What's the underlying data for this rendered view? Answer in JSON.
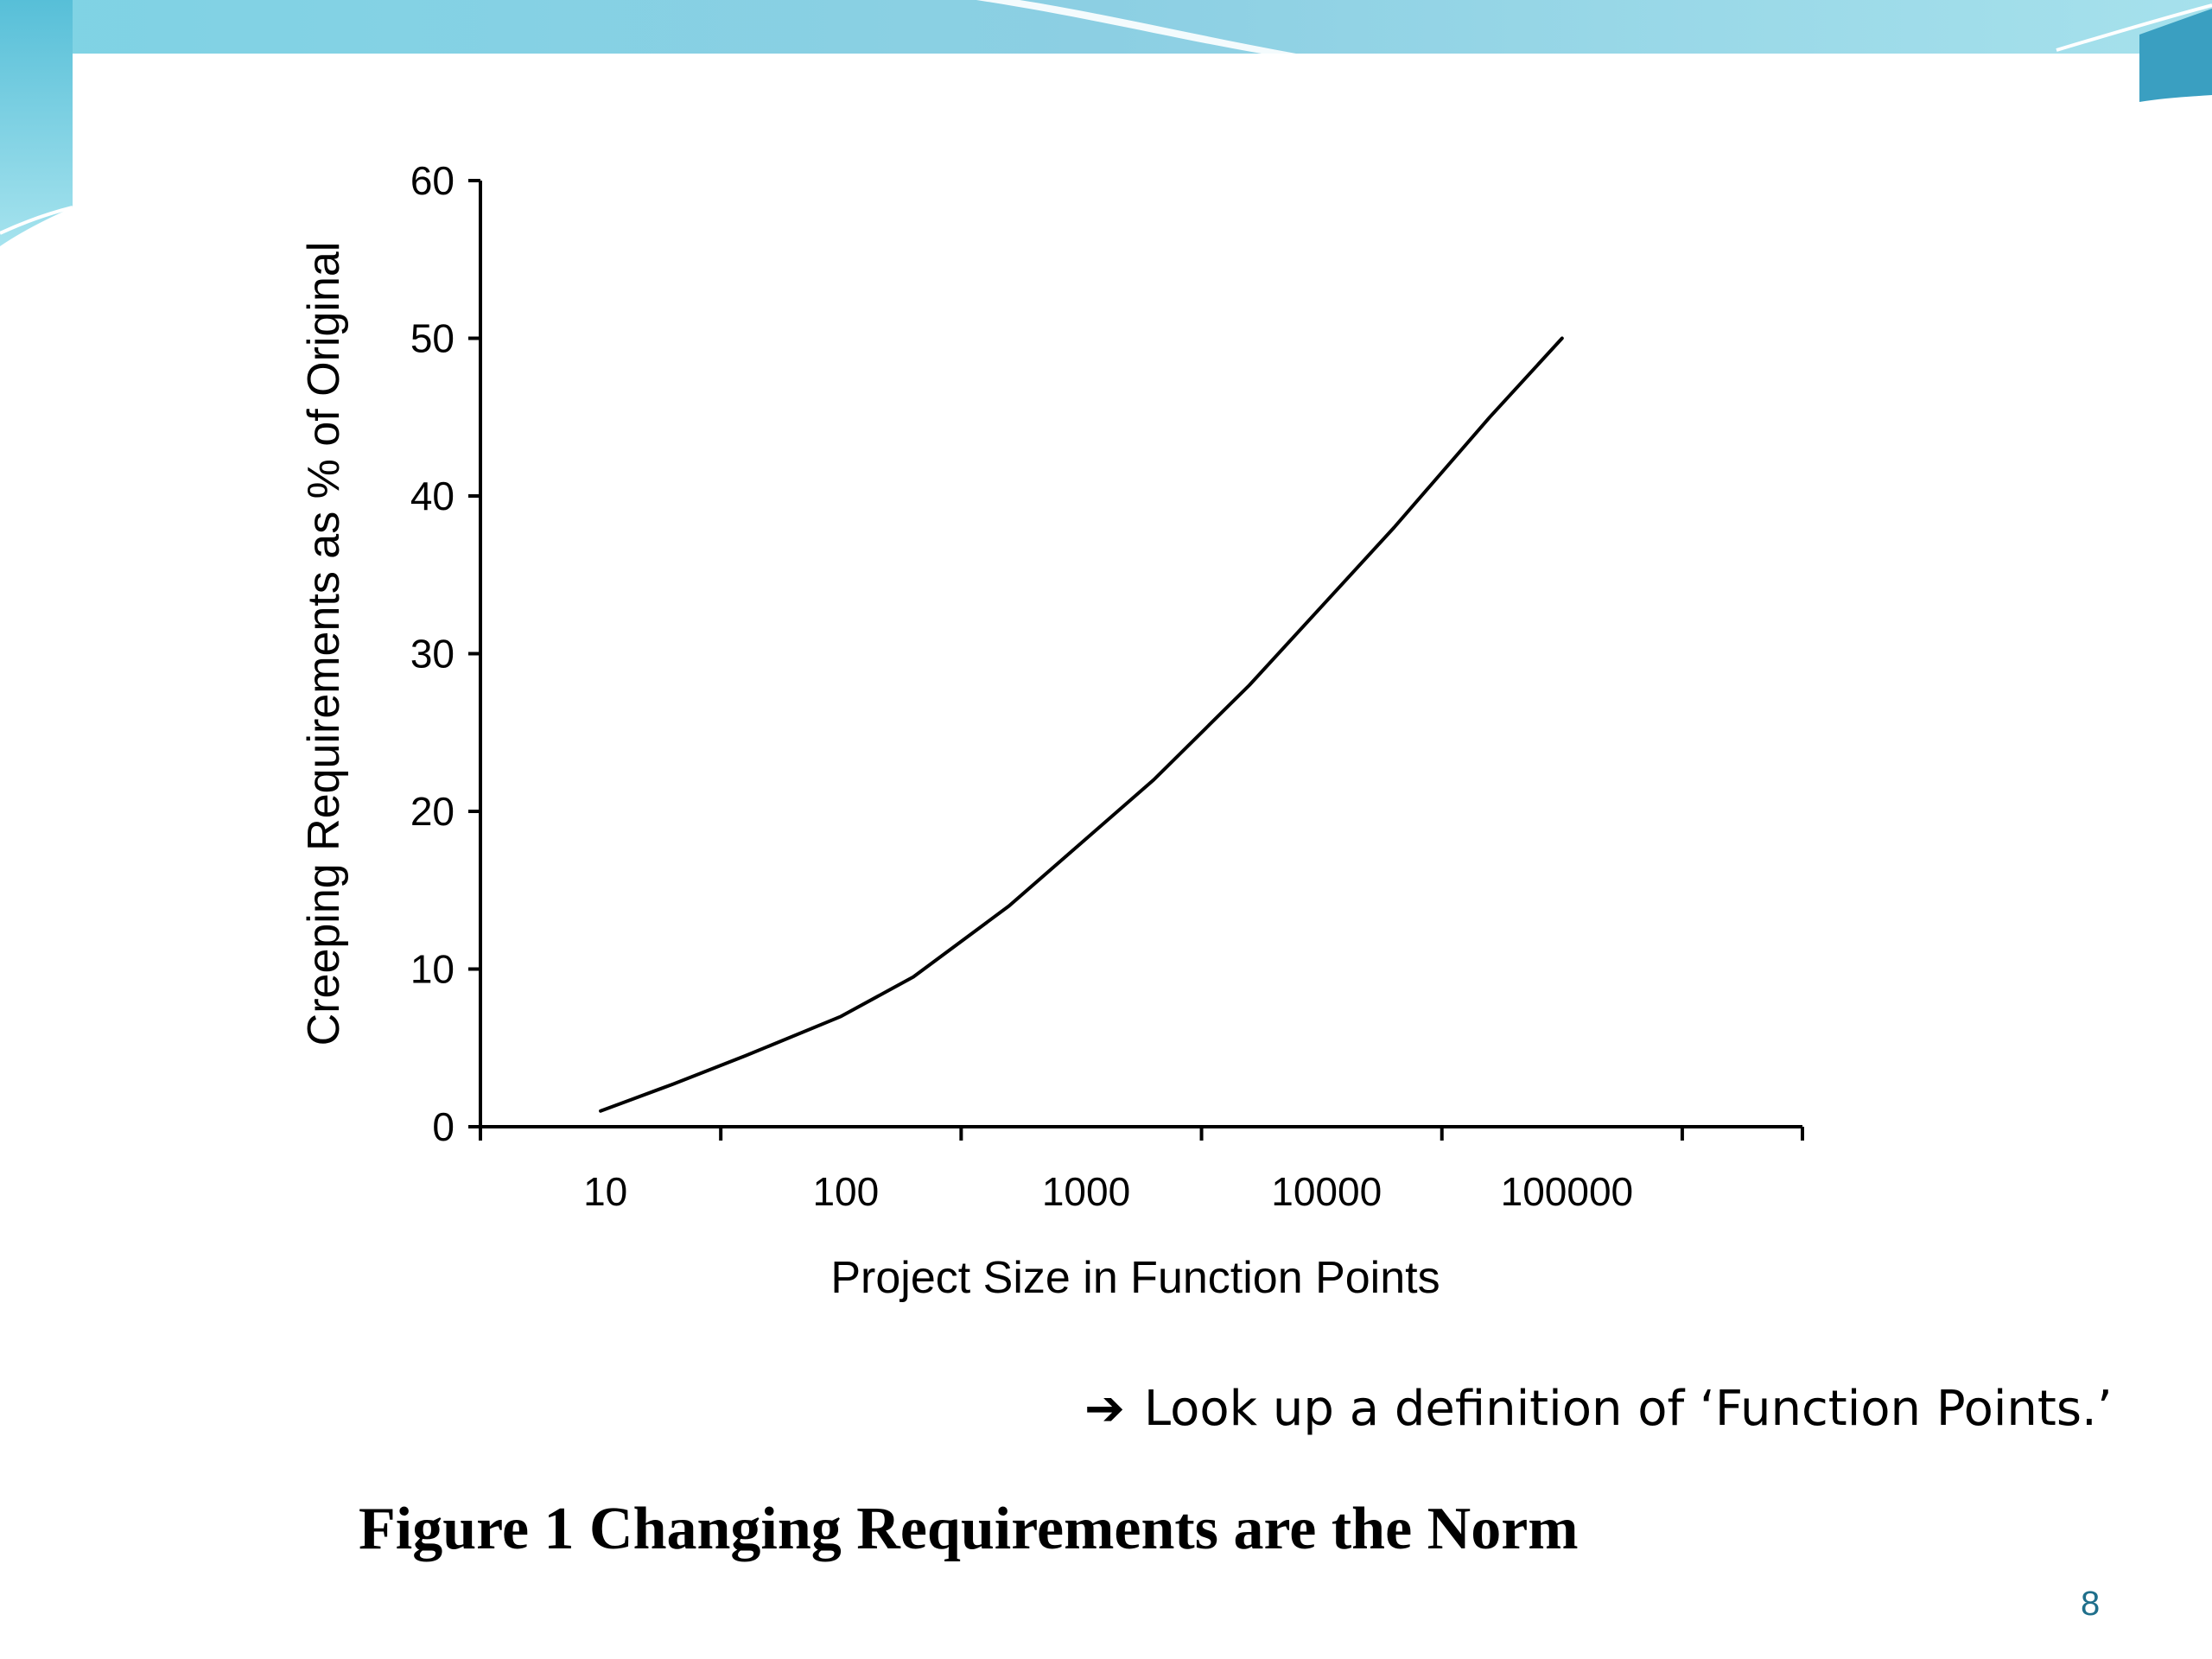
{
  "slide": {
    "note_arrow": "➔",
    "note_text": "Look up a definition of ‘Function Points.’",
    "caption": "Figure 1  Changing Requirements are the Norm",
    "page_number": "8",
    "theme_colors": {
      "light": "#a9e4ee",
      "mid": "#6cc5da",
      "dark": "#3a9fc1"
    }
  },
  "chart_data": {
    "type": "line",
    "title": "",
    "xlabel": "Project Size in Function Points",
    "ylabel": "Creeping Requirements as % of Original",
    "xscale": "log",
    "categories": [
      "10",
      "100",
      "1000",
      "10000",
      "100000"
    ],
    "ylim": [
      0,
      60
    ],
    "yticks": [
      0,
      10,
      20,
      30,
      40,
      50,
      60
    ],
    "grid": false,
    "legend": "none",
    "series": [
      {
        "x": [
          10,
          20,
          40,
          100,
          200,
          500,
          1000,
          2000,
          5000,
          10000,
          20000,
          50000,
          100000
        ],
        "values": [
          1,
          2.7,
          4.5,
          7,
          9.5,
          14,
          18,
          22,
          28,
          33,
          38,
          45,
          50
        ]
      }
    ],
    "line_color": "#000000"
  }
}
